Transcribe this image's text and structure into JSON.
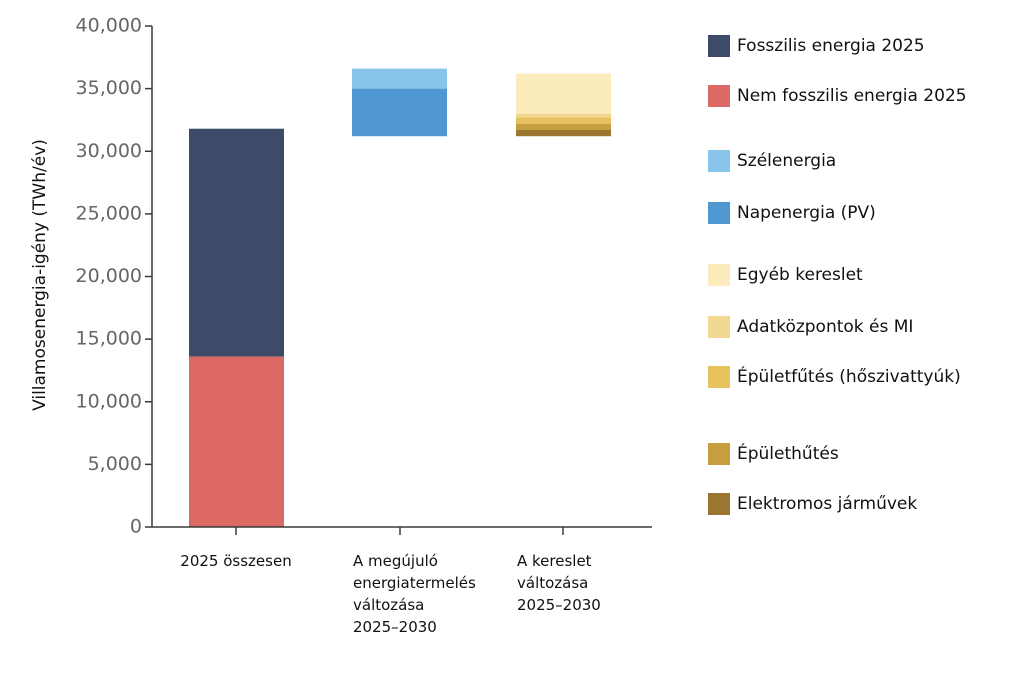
{
  "chart_data": {
    "type": "bar",
    "ylabel": "Villamosenergia-igény (TWh/év)",
    "ylim": [
      0,
      40000
    ],
    "yticks": [
      "0",
      "5,000",
      "10,000",
      "15,000",
      "20,000",
      "25,000",
      "30,000",
      "35,000",
      "40,000"
    ],
    "ytick_values": [
      0,
      5000,
      10000,
      15000,
      20000,
      25000,
      30000,
      35000,
      40000
    ],
    "categories": [
      [
        "2025 összesen"
      ],
      [
        "A megújuló",
        "energiatermelés",
        "változása",
        "2025–2030"
      ],
      [
        "A kereslet",
        "változása",
        "2025–2030"
      ]
    ],
    "series": [
      {
        "name": "Fosszilis energia 2025",
        "color": "#3d4b68",
        "bars": [
          {
            "cat": 0,
            "from": 13600,
            "to": 31800
          }
        ]
      },
      {
        "name": "Nem fosszilis energia 2025",
        "color": "#dc6964",
        "bars": [
          {
            "cat": 0,
            "from": 0,
            "to": 13600
          }
        ]
      },
      {
        "name": "Szélenergia",
        "color": "#89c4ea",
        "bars": [
          {
            "cat": 1,
            "from": 35000,
            "to": 36600
          }
        ]
      },
      {
        "name": "Napenergia (PV)",
        "color": "#4e97d0",
        "bars": [
          {
            "cat": 1,
            "from": 31200,
            "to": 35000
          }
        ]
      },
      {
        "name": "Egyéb kereslet",
        "color": "#fcebbd",
        "bars": [
          {
            "cat": 2,
            "from": 33000,
            "to": 36200
          }
        ]
      },
      {
        "name": "Adatközpontok és MI",
        "color": "#f2d993",
        "bars": [
          {
            "cat": 2,
            "from": 32700,
            "to": 33000
          }
        ]
      },
      {
        "name": "Épületfűtés (hőszivattyúk)",
        "color": "#e7c35f",
        "bars": [
          {
            "cat": 2,
            "from": 32200,
            "to": 32700
          }
        ]
      },
      {
        "name": "Épülethűtés",
        "color": "#c79e3e",
        "bars": [
          {
            "cat": 2,
            "from": 31700,
            "to": 32200
          }
        ]
      },
      {
        "name": "Elektromos járművek",
        "color": "#9a7630",
        "bars": [
          {
            "cat": 2,
            "from": 31200,
            "to": 31700
          }
        ]
      }
    ],
    "legend_position": "right",
    "grid": false
  }
}
